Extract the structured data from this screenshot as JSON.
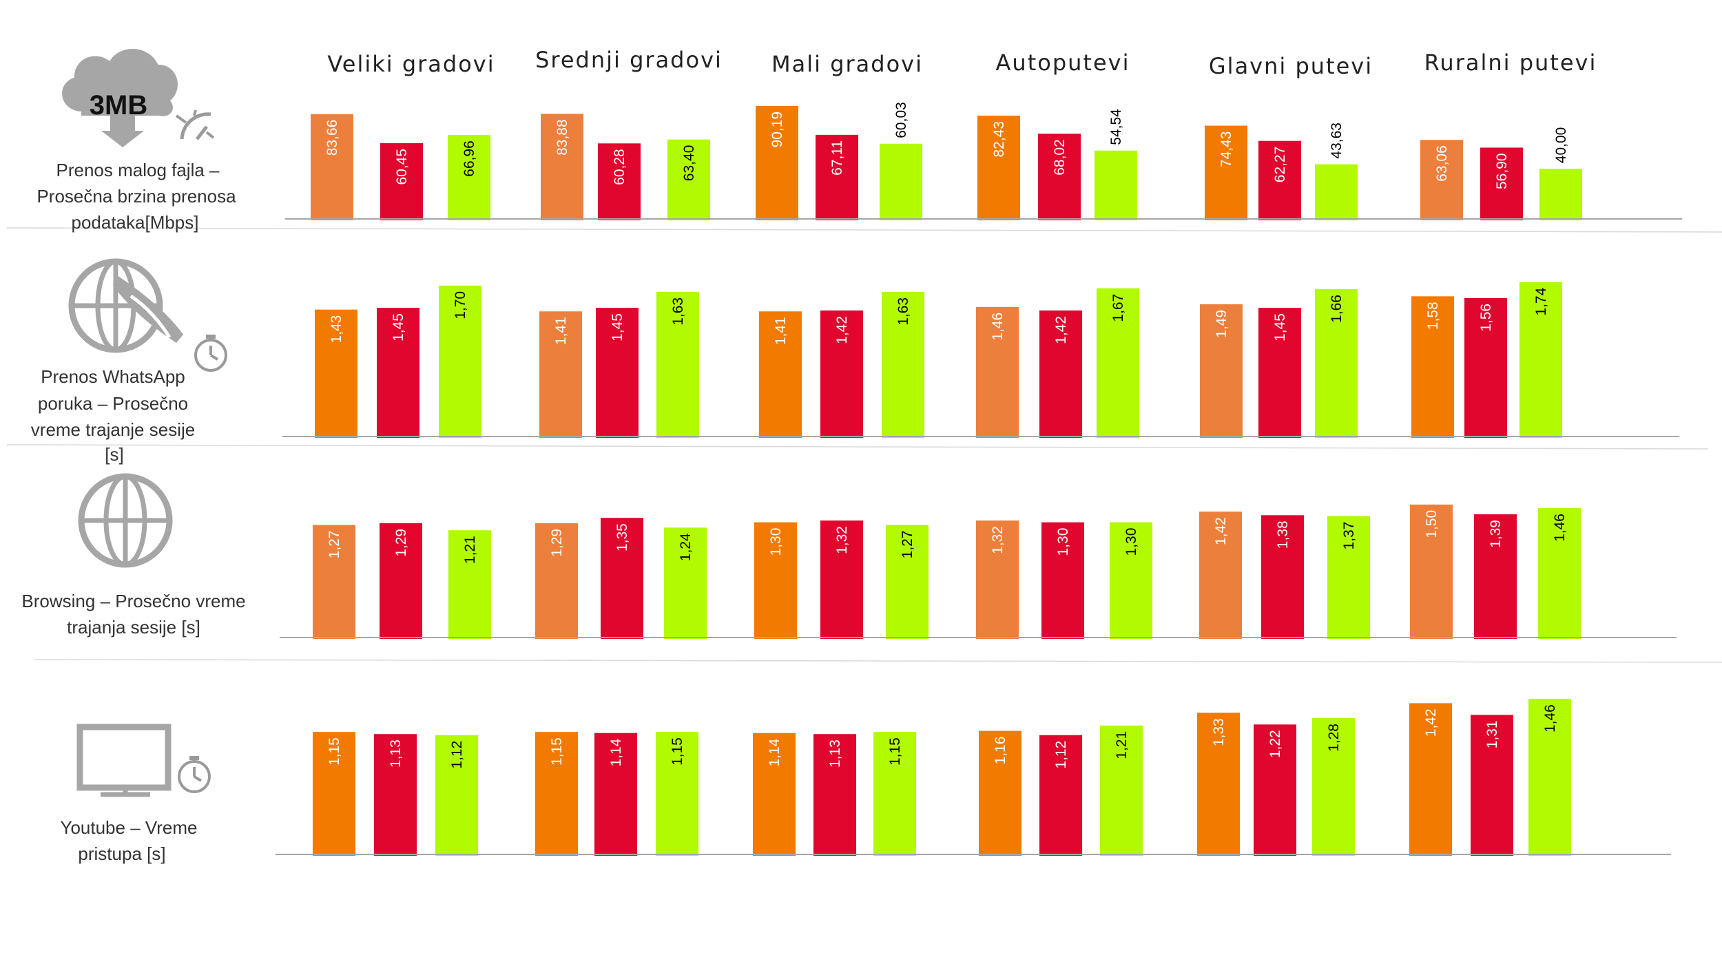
{
  "chart_data": {
    "type": "bar",
    "categories": [
      "Veliki gradovi",
      "Srednji gradovi",
      "Mali gradovi",
      "Autoputevi",
      "Glavni putevi",
      "Ruralni putevi"
    ],
    "series_colors": [
      "#f27a00",
      "#e0062e",
      "#b2fa00"
    ],
    "alt_orange": "#ed7f3c",
    "panels": [
      {
        "id": "file",
        "icon": "cloud-download-speed-icon",
        "icon_text": "3MB",
        "title_lines": [
          "Prenos malog fajla  –",
          "Prosečna brzina prenosa",
          "podataka[Mbps]"
        ],
        "ylim": [
          0,
          100
        ],
        "values": [
          [
            83.66,
            60.45,
            66.96
          ],
          [
            83.88,
            60.28,
            63.4
          ],
          [
            90.19,
            67.11,
            60.03
          ],
          [
            82.43,
            68.02,
            54.54
          ],
          [
            74.43,
            62.27,
            43.63
          ],
          [
            63.06,
            56.9,
            40.0
          ]
        ],
        "labels": [
          [
            "83,66",
            "60,45",
            "66,96"
          ],
          [
            "83,88",
            "60,28",
            "63,40"
          ],
          [
            "90,19",
            "67,11",
            "60,03"
          ],
          [
            "82,43",
            "68,02",
            "54,54"
          ],
          [
            "74,43",
            "62,27",
            "43,63"
          ],
          [
            "63,06",
            "56,90",
            "40,00"
          ]
        ]
      },
      {
        "id": "whatsapp",
        "icon": "whatsapp-globe-timer-icon",
        "title_lines": [
          "Prenos WhatsApp",
          "poruka – Prosečno",
          "vreme trajanje sesije",
          "[s]"
        ],
        "ylim": [
          0,
          1.8
        ],
        "values": [
          [
            1.43,
            1.45,
            1.7
          ],
          [
            1.41,
            1.45,
            1.63
          ],
          [
            1.41,
            1.42,
            1.63
          ],
          [
            1.46,
            1.42,
            1.67
          ],
          [
            1.49,
            1.45,
            1.66
          ],
          [
            1.58,
            1.56,
            1.74
          ]
        ],
        "labels": [
          [
            "1,43",
            "1,45",
            "1,70"
          ],
          [
            "1,41",
            "1,45",
            "1,63"
          ],
          [
            "1,41",
            "1,42",
            "1,63"
          ],
          [
            "1,46",
            "1,42",
            "1,67"
          ],
          [
            "1,49",
            "1,45",
            "1,66"
          ],
          [
            "1,58",
            "1,56",
            "1,74"
          ]
        ]
      },
      {
        "id": "browsing",
        "icon": "globe-icon",
        "title_lines": [
          "Browsing  – Prosečno vreme",
          "trajanja sesije  [s]"
        ],
        "ylim": [
          0,
          1.6
        ],
        "values": [
          [
            1.27,
            1.29,
            1.21
          ],
          [
            1.29,
            1.35,
            1.24
          ],
          [
            1.3,
            1.32,
            1.27
          ],
          [
            1.32,
            1.3,
            1.3
          ],
          [
            1.42,
            1.38,
            1.37
          ],
          [
            1.5,
            1.39,
            1.46
          ]
        ],
        "labels": [
          [
            "1,27",
            "1,29",
            "1,21"
          ],
          [
            "1,29",
            "1,35",
            "1,24"
          ],
          [
            "1,30",
            "1,32",
            "1,27"
          ],
          [
            "1,32",
            "1,30",
            "1,30"
          ],
          [
            "1,42",
            "1,38",
            "1,37"
          ],
          [
            "1,50",
            "1,39",
            "1,46"
          ]
        ]
      },
      {
        "id": "youtube",
        "icon": "monitor-timer-icon",
        "title_lines": [
          "Youtube  – Vreme",
          "pristupa  [s]"
        ],
        "ylim": [
          0,
          1.5
        ],
        "values": [
          [
            1.15,
            1.13,
            1.12
          ],
          [
            1.15,
            1.14,
            1.15
          ],
          [
            1.14,
            1.13,
            1.15
          ],
          [
            1.16,
            1.12,
            1.21
          ],
          [
            1.33,
            1.22,
            1.28
          ],
          [
            1.42,
            1.31,
            1.46
          ]
        ],
        "labels": [
          [
            "1,15",
            "1,13",
            "1,12"
          ],
          [
            "1,15",
            "1,14",
            "1,15"
          ],
          [
            "1,14",
            "1,13",
            "1,15"
          ],
          [
            "1,16",
            "1,12",
            "1,21"
          ],
          [
            "1,33",
            "1,22",
            "1,28"
          ],
          [
            "1,42",
            "1,31",
            "1,46"
          ]
        ]
      }
    ]
  }
}
